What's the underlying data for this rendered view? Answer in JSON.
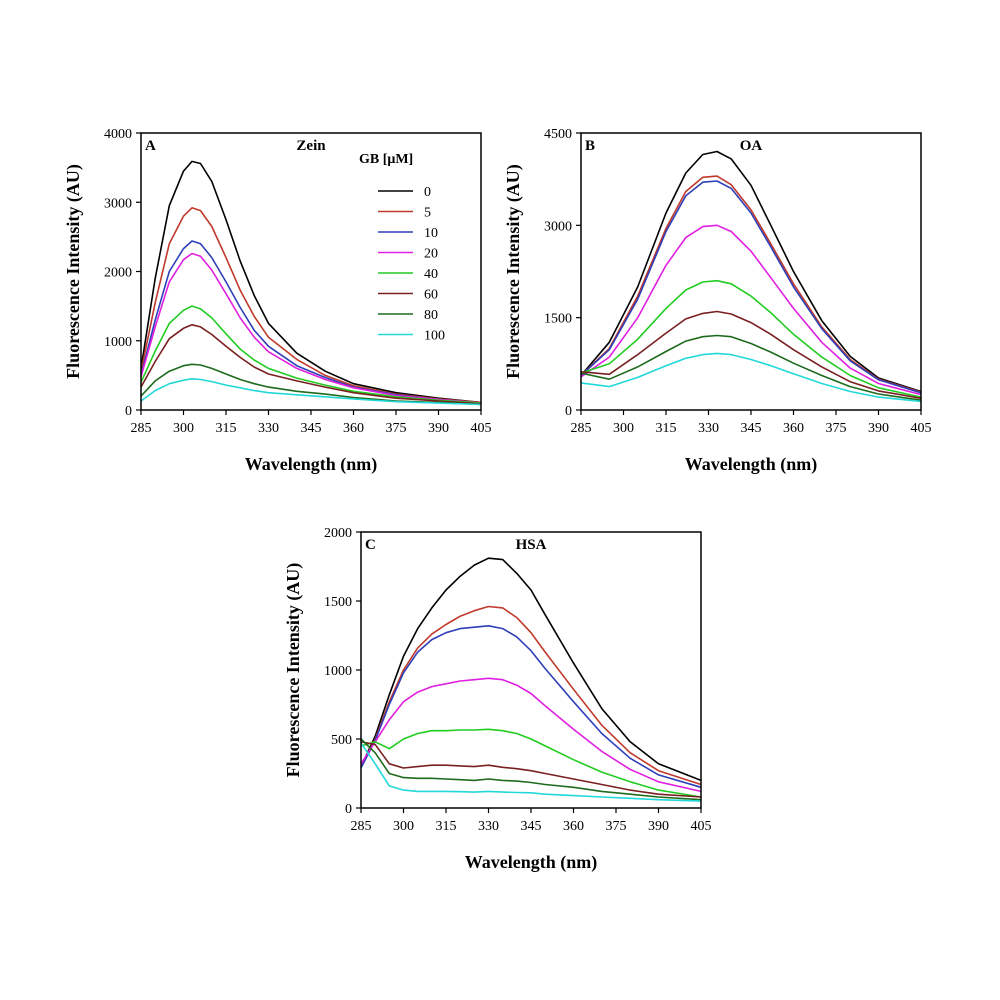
{
  "chart_data": [
    {
      "type": "line",
      "panel_letter": "A",
      "title": "Zein",
      "xlabel": "Wavelength (nm)",
      "ylabel": "Fluorescence Intensity (AU)",
      "xlim": [
        285,
        405
      ],
      "ylim": [
        0,
        4000
      ],
      "xticks": [
        "285",
        "300",
        "315",
        "330",
        "345",
        "360",
        "375",
        "390",
        "405"
      ],
      "yticks": [
        "0",
        "1000",
        "2000",
        "3000",
        "4000"
      ],
      "legend_title": "GB [μM]",
      "x": [
        285,
        290,
        295,
        300,
        303,
        306,
        310,
        315,
        320,
        325,
        330,
        340,
        350,
        360,
        375,
        390,
        405
      ],
      "series": [
        {
          "name": "0",
          "color": "#000000",
          "values": [
            600,
            1900,
            2950,
            3450,
            3590,
            3560,
            3300,
            2750,
            2150,
            1650,
            1250,
            820,
            560,
            380,
            250,
            170,
            110
          ]
        },
        {
          "name": "5",
          "color": "#c0392b",
          "values": [
            550,
            1550,
            2400,
            2800,
            2920,
            2880,
            2650,
            2200,
            1730,
            1350,
            1050,
            730,
            500,
            350,
            230,
            160,
            110
          ]
        },
        {
          "name": "10",
          "color": "#2e3fb8",
          "values": [
            500,
            1300,
            2000,
            2330,
            2440,
            2400,
            2200,
            1850,
            1480,
            1150,
            920,
            640,
            470,
            330,
            220,
            150,
            100
          ]
        },
        {
          "name": "20",
          "color": "#e020e0",
          "values": [
            480,
            1200,
            1850,
            2170,
            2260,
            2220,
            2020,
            1680,
            1330,
            1050,
            840,
            600,
            440,
            320,
            210,
            150,
            100
          ]
        },
        {
          "name": "40",
          "color": "#22cc22",
          "values": [
            400,
            850,
            1250,
            1440,
            1500,
            1460,
            1330,
            1100,
            880,
            720,
            600,
            460,
            360,
            270,
            190,
            140,
            100
          ]
        },
        {
          "name": "60",
          "color": "#7a2020",
          "values": [
            330,
            700,
            1030,
            1180,
            1230,
            1200,
            1090,
            920,
            760,
            620,
            520,
            420,
            330,
            250,
            170,
            130,
            90
          ]
        },
        {
          "name": "80",
          "color": "#1e6b1e",
          "values": [
            200,
            420,
            560,
            640,
            660,
            650,
            600,
            520,
            440,
            380,
            330,
            270,
            230,
            180,
            130,
            110,
            80
          ]
        },
        {
          "name": "100",
          "color": "#22d8d8",
          "values": [
            130,
            280,
            380,
            430,
            450,
            440,
            410,
            360,
            320,
            280,
            250,
            220,
            190,
            160,
            120,
            100,
            80
          ]
        }
      ]
    },
    {
      "type": "line",
      "panel_letter": "B",
      "title": "OA",
      "xlabel": "Wavelength (nm)",
      "ylabel": "Fluorescence Intensity (AU)",
      "xlim": [
        285,
        405
      ],
      "ylim": [
        0,
        4500
      ],
      "xticks": [
        "285",
        "300",
        "315",
        "330",
        "345",
        "360",
        "375",
        "390",
        "405"
      ],
      "yticks": [
        "0",
        "1500",
        "3000",
        "4500"
      ],
      "x": [
        285,
        295,
        305,
        315,
        322,
        328,
        333,
        338,
        345,
        352,
        360,
        370,
        380,
        390,
        405
      ],
      "series": [
        {
          "name": "0",
          "color": "#000000",
          "values": [
            560,
            1100,
            2000,
            3200,
            3850,
            4150,
            4200,
            4080,
            3650,
            3000,
            2250,
            1450,
            870,
            520,
            300
          ]
        },
        {
          "name": "5",
          "color": "#c0392b",
          "values": [
            560,
            1000,
            1850,
            2950,
            3550,
            3780,
            3800,
            3660,
            3250,
            2700,
            2050,
            1350,
            820,
            500,
            290
          ]
        },
        {
          "name": "10",
          "color": "#2e3fb8",
          "values": [
            560,
            980,
            1800,
            2900,
            3480,
            3700,
            3720,
            3600,
            3200,
            2650,
            2000,
            1320,
            800,
            490,
            280
          ]
        },
        {
          "name": "20",
          "color": "#e020e0",
          "values": [
            540,
            860,
            1500,
            2350,
            2800,
            2980,
            3000,
            2900,
            2580,
            2150,
            1650,
            1100,
            680,
            430,
            250
          ]
        },
        {
          "name": "40",
          "color": "#22cc22",
          "values": [
            600,
            750,
            1150,
            1650,
            1950,
            2080,
            2100,
            2050,
            1850,
            1580,
            1230,
            860,
            560,
            360,
            210
          ]
        },
        {
          "name": "60",
          "color": "#7a2020",
          "values": [
            620,
            580,
            900,
            1250,
            1480,
            1570,
            1600,
            1560,
            1420,
            1230,
            980,
            700,
            460,
            310,
            190
          ]
        },
        {
          "name": "80",
          "color": "#1e6b1e",
          "values": [
            600,
            500,
            700,
            950,
            1120,
            1190,
            1210,
            1190,
            1080,
            940,
            760,
            560,
            380,
            260,
            160
          ]
        },
        {
          "name": "100",
          "color": "#22d8d8",
          "values": [
            440,
            380,
            530,
            720,
            840,
            900,
            920,
            900,
            820,
            720,
            590,
            430,
            300,
            210,
            140
          ]
        }
      ]
    },
    {
      "type": "line",
      "panel_letter": "C",
      "title": "HSA",
      "xlabel": "Wavelength (nm)",
      "ylabel": "Fluorescence Intensity (AU)",
      "xlim": [
        285,
        405
      ],
      "ylim": [
        0,
        2000
      ],
      "xticks": [
        "285",
        "300",
        "315",
        "330",
        "345",
        "360",
        "375",
        "390",
        "405"
      ],
      "yticks": [
        "0",
        "500",
        "1000",
        "1500",
        "2000"
      ],
      "x": [
        285,
        290,
        295,
        300,
        305,
        310,
        315,
        320,
        325,
        330,
        335,
        340,
        345,
        350,
        360,
        370,
        380,
        390,
        405
      ],
      "series": [
        {
          "name": "0",
          "color": "#000000",
          "values": [
            300,
            520,
            820,
            1100,
            1300,
            1450,
            1580,
            1680,
            1760,
            1810,
            1800,
            1700,
            1580,
            1400,
            1050,
            720,
            480,
            320,
            200
          ]
        },
        {
          "name": "5",
          "color": "#c0392b",
          "values": [
            300,
            500,
            770,
            1000,
            1160,
            1260,
            1330,
            1390,
            1430,
            1460,
            1450,
            1380,
            1270,
            1130,
            860,
            600,
            400,
            270,
            170
          ]
        },
        {
          "name": "10",
          "color": "#2e3fb8",
          "values": [
            290,
            490,
            750,
            980,
            1130,
            1220,
            1270,
            1300,
            1310,
            1320,
            1300,
            1240,
            1140,
            1010,
            770,
            540,
            360,
            240,
            150
          ]
        },
        {
          "name": "20",
          "color": "#e020e0",
          "values": [
            320,
            480,
            640,
            770,
            840,
            880,
            900,
            920,
            930,
            940,
            930,
            890,
            830,
            740,
            570,
            410,
            280,
            190,
            120
          ]
        },
        {
          "name": "40",
          "color": "#22cc22",
          "values": [
            450,
            480,
            430,
            500,
            540,
            560,
            560,
            565,
            565,
            570,
            560,
            540,
            500,
            450,
            350,
            260,
            190,
            130,
            80
          ]
        },
        {
          "name": "60",
          "color": "#7a2020",
          "values": [
            480,
            460,
            320,
            290,
            300,
            310,
            310,
            305,
            300,
            310,
            295,
            285,
            270,
            250,
            210,
            170,
            130,
            100,
            80
          ]
        },
        {
          "name": "80",
          "color": "#1e6b1e",
          "values": [
            500,
            400,
            250,
            220,
            215,
            215,
            210,
            205,
            200,
            210,
            200,
            195,
            185,
            170,
            150,
            120,
            100,
            80,
            60
          ]
        },
        {
          "name": "100",
          "color": "#22d8d8",
          "values": [
            470,
            320,
            160,
            130,
            120,
            120,
            120,
            118,
            115,
            120,
            115,
            112,
            110,
            100,
            90,
            80,
            70,
            60,
            50
          ]
        }
      ]
    }
  ]
}
